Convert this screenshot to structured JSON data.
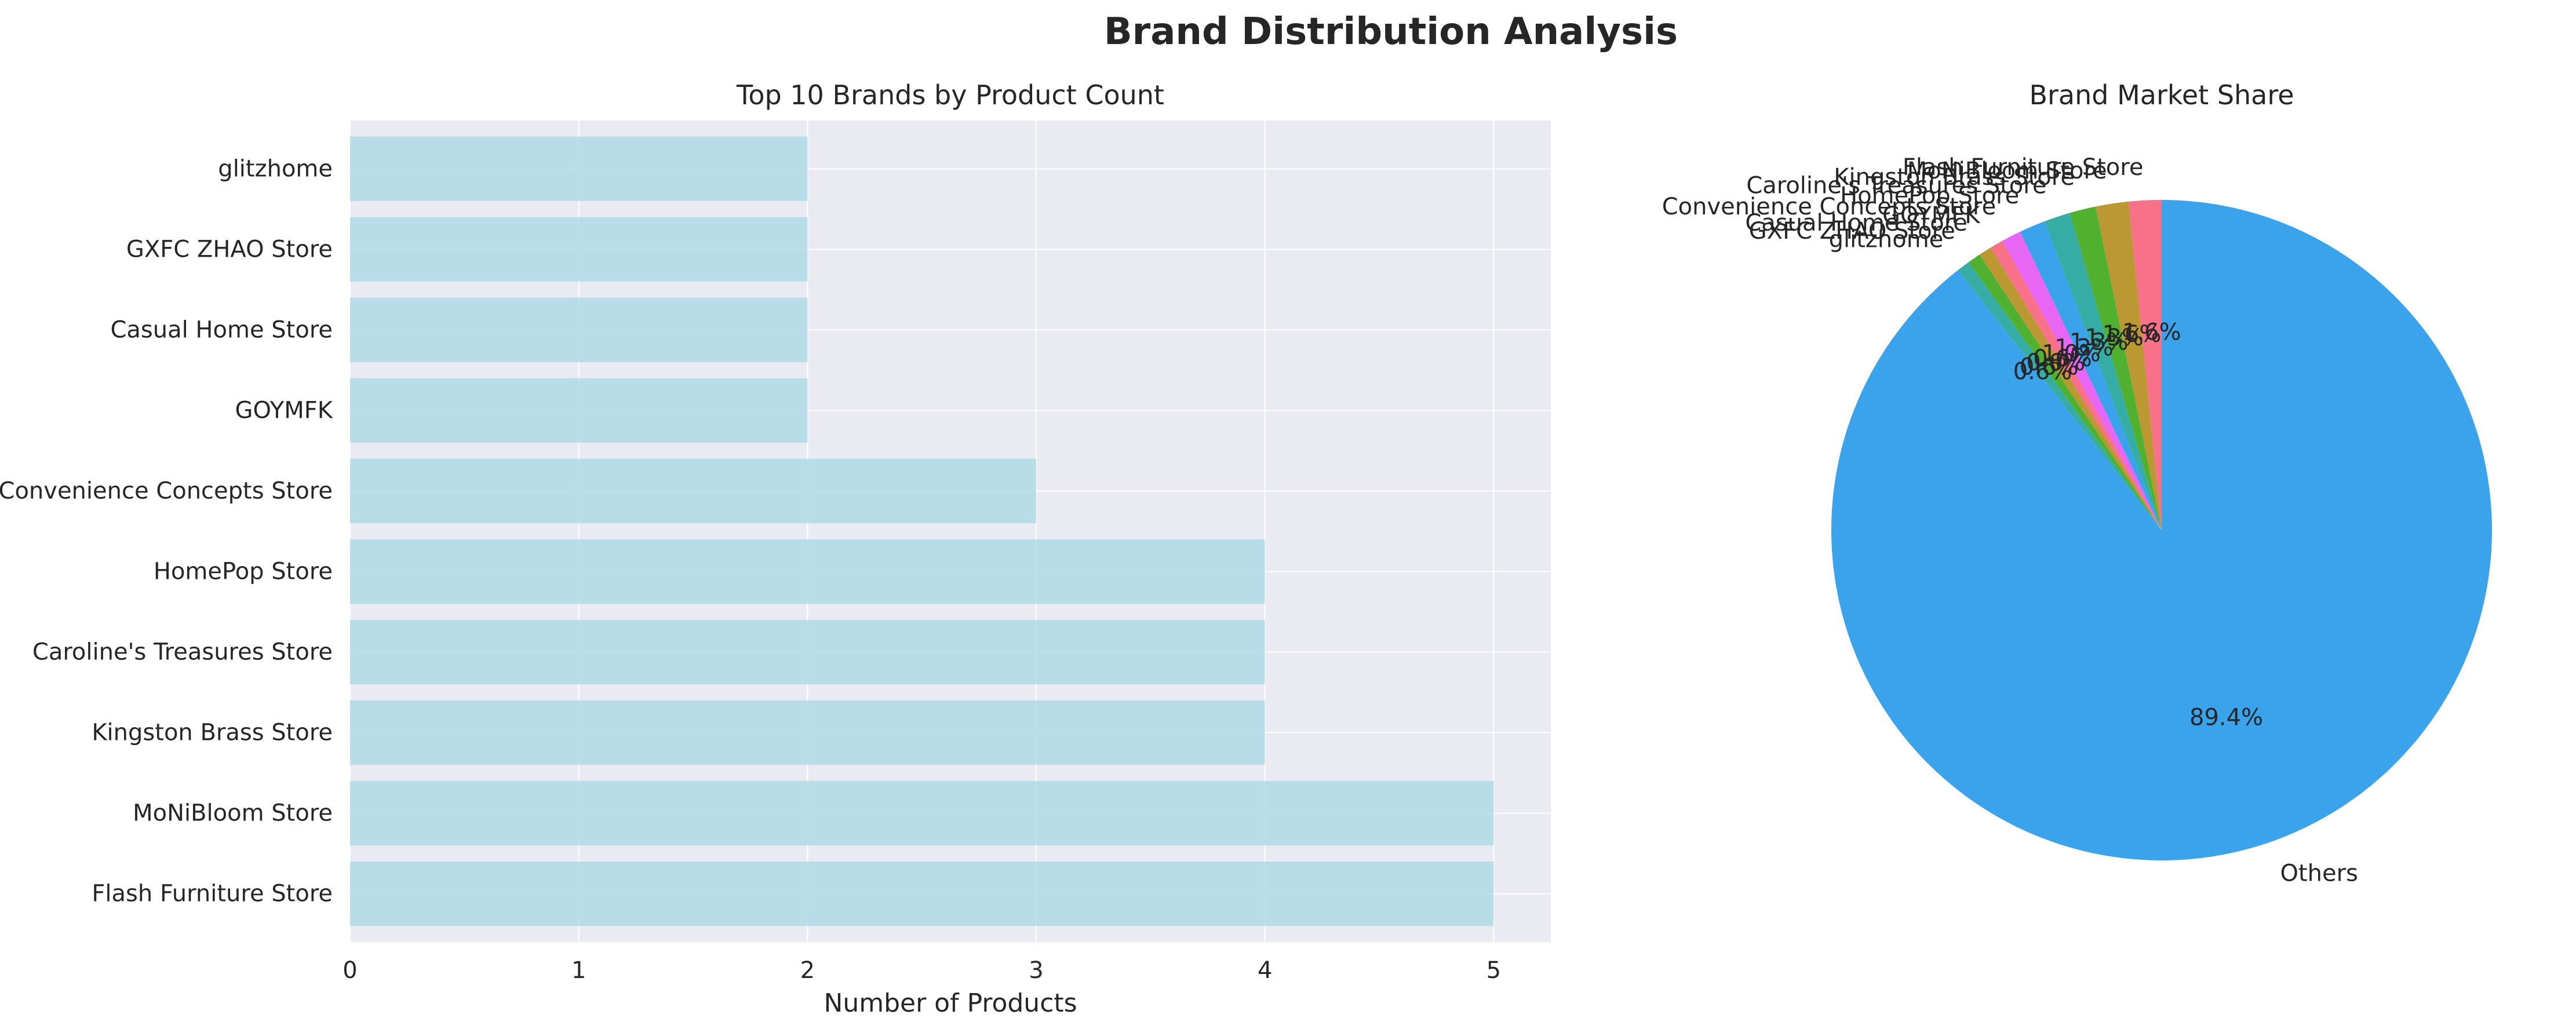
{
  "figure_title": "Brand Distribution Analysis",
  "chart_data": [
    {
      "type": "bar",
      "orientation": "horizontal",
      "title": "Top 10 Brands by Product Count",
      "xlabel": "Number of Products",
      "ylabel": "",
      "categories": [
        "Flash Furniture Store",
        "MoNiBloom Store",
        "Kingston Brass Store",
        "Caroline's Treasures Store",
        "HomePop Store",
        "Convenience Concepts Store",
        "GOYMFK",
        "Casual Home Store",
        "GXFC ZHAO Store",
        "glitzhome"
      ],
      "values": [
        5,
        5,
        4,
        4,
        4,
        3,
        2,
        2,
        2,
        2
      ],
      "xlim": [
        0,
        5.25
      ],
      "xticks": [
        0,
        1,
        2,
        3,
        4,
        5
      ],
      "grid": true,
      "bar_color": "#add8e6"
    },
    {
      "type": "pie",
      "title": "Brand Market Share",
      "start_angle_deg": 90,
      "direction": "counterclockwise",
      "slices": [
        {
          "label": "Flash Furniture Store",
          "value": 5,
          "pct_label": "1.6%",
          "color": "#f77189"
        },
        {
          "label": "MoNiBloom Store",
          "value": 5,
          "pct_label": "1.6%",
          "color": "#bb9832"
        },
        {
          "label": "Kingston Brass Store",
          "value": 4,
          "pct_label": "1.3%",
          "color": "#50b131"
        },
        {
          "label": "Caroline's Treasures Store",
          "value": 4,
          "pct_label": "1.3%",
          "color": "#36ada4"
        },
        {
          "label": "HomePop Store",
          "value": 4,
          "pct_label": "1.3%",
          "color": "#3ba3ec"
        },
        {
          "label": "Convenience Concepts Store",
          "value": 3,
          "pct_label": "1.0%",
          "color": "#e866f4"
        },
        {
          "label": "GOYMFK",
          "value": 2,
          "pct_label": "0.6%",
          "color": "#f77189"
        },
        {
          "label": "Casual Home Store",
          "value": 2,
          "pct_label": "0.6%",
          "color": "#bb9832"
        },
        {
          "label": "GXFC ZHAO Store",
          "value": 2,
          "pct_label": "0.6%",
          "color": "#50b131"
        },
        {
          "label": "glitzhome",
          "value": 2,
          "pct_label": "0.6%",
          "color": "#36ada4"
        },
        {
          "label": "Others",
          "value": 279,
          "pct_label": "89.4%",
          "color": "#3ba3ec"
        }
      ]
    }
  ]
}
